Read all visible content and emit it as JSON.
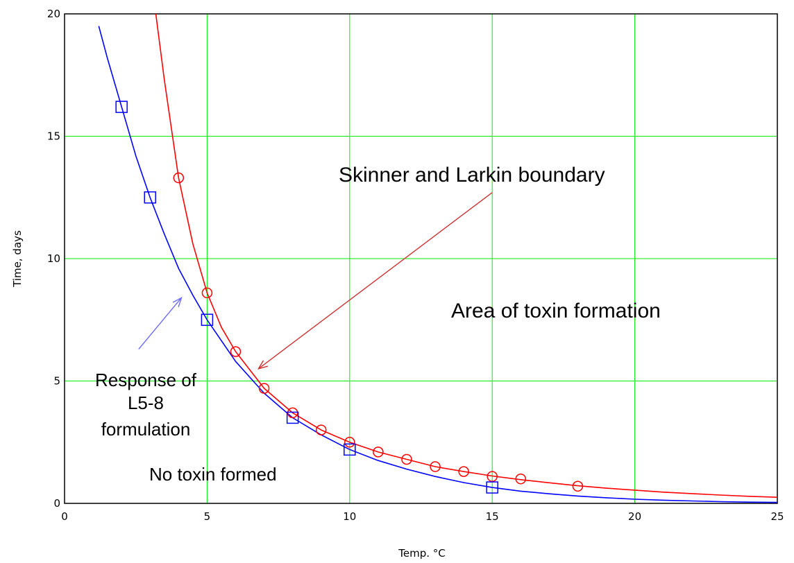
{
  "chart_data": {
    "type": "line",
    "xlabel": "Temp. °C",
    "ylabel": "Time, days",
    "xlim": [
      0,
      25
    ],
    "ylim": [
      0,
      20
    ],
    "x_ticks": [
      0,
      5,
      10,
      15,
      20,
      25
    ],
    "y_ticks": [
      0,
      5,
      10,
      15,
      20
    ],
    "grid": true,
    "series": [
      {
        "color": "#ff0000",
        "marker": "circle",
        "points": [
          {
            "x": 4,
            "y": 13.3
          },
          {
            "x": 5,
            "y": 8.6
          },
          {
            "x": 6,
            "y": 6.2
          },
          {
            "x": 7,
            "y": 4.7
          },
          {
            "x": 8,
            "y": 3.7
          },
          {
            "x": 9,
            "y": 3.0
          },
          {
            "x": 10,
            "y": 2.5
          },
          {
            "x": 11,
            "y": 2.1
          },
          {
            "x": 12,
            "y": 1.8
          },
          {
            "x": 13,
            "y": 1.5
          },
          {
            "x": 14,
            "y": 1.3
          },
          {
            "x": 15,
            "y": 1.1
          },
          {
            "x": 16,
            "y": 1.0
          },
          {
            "x": 18,
            "y": 0.7
          }
        ],
        "curve": [
          {
            "x": 3.2,
            "y": 20
          },
          {
            "x": 3.5,
            "y": 17.3
          },
          {
            "x": 4,
            "y": 13.3
          },
          {
            "x": 4.5,
            "y": 10.6
          },
          {
            "x": 5,
            "y": 8.6
          },
          {
            "x": 5.5,
            "y": 7.2
          },
          {
            "x": 6,
            "y": 6.2
          },
          {
            "x": 7,
            "y": 4.7
          },
          {
            "x": 8,
            "y": 3.7
          },
          {
            "x": 9,
            "y": 3.0
          },
          {
            "x": 10,
            "y": 2.5
          },
          {
            "x": 11,
            "y": 2.1
          },
          {
            "x": 12,
            "y": 1.8
          },
          {
            "x": 13,
            "y": 1.5
          },
          {
            "x": 14,
            "y": 1.3
          },
          {
            "x": 15,
            "y": 1.12
          },
          {
            "x": 16,
            "y": 0.97
          },
          {
            "x": 17,
            "y": 0.84
          },
          {
            "x": 18,
            "y": 0.72
          },
          {
            "x": 19,
            "y": 0.62
          },
          {
            "x": 20,
            "y": 0.54
          },
          {
            "x": 21,
            "y": 0.46
          },
          {
            "x": 22,
            "y": 0.4
          },
          {
            "x": 23,
            "y": 0.34
          },
          {
            "x": 24,
            "y": 0.29
          },
          {
            "x": 25,
            "y": 0.25
          }
        ]
      },
      {
        "color": "#0000ff",
        "marker": "square",
        "points": [
          {
            "x": 2,
            "y": 16.2
          },
          {
            "x": 3,
            "y": 12.5
          },
          {
            "x": 5,
            "y": 7.5
          },
          {
            "x": 8,
            "y": 3.5
          },
          {
            "x": 10,
            "y": 2.2
          },
          {
            "x": 15,
            "y": 0.65
          }
        ],
        "curve": [
          {
            "x": 1.2,
            "y": 19.5
          },
          {
            "x": 1.5,
            "y": 18.2
          },
          {
            "x": 2,
            "y": 16.2
          },
          {
            "x": 2.5,
            "y": 14.2
          },
          {
            "x": 3,
            "y": 12.5
          },
          {
            "x": 3.5,
            "y": 11.0
          },
          {
            "x": 4,
            "y": 9.6
          },
          {
            "x": 4.5,
            "y": 8.5
          },
          {
            "x": 5,
            "y": 7.5
          },
          {
            "x": 6,
            "y": 5.8
          },
          {
            "x": 7,
            "y": 4.5
          },
          {
            "x": 8,
            "y": 3.5
          },
          {
            "x": 9,
            "y": 2.8
          },
          {
            "x": 10,
            "y": 2.2
          },
          {
            "x": 11,
            "y": 1.75
          },
          {
            "x": 12,
            "y": 1.4
          },
          {
            "x": 13,
            "y": 1.1
          },
          {
            "x": 14,
            "y": 0.85
          },
          {
            "x": 15,
            "y": 0.65
          },
          {
            "x": 16,
            "y": 0.5
          },
          {
            "x": 17,
            "y": 0.39
          },
          {
            "x": 18,
            "y": 0.3
          },
          {
            "x": 19,
            "y": 0.23
          },
          {
            "x": 20,
            "y": 0.17
          },
          {
            "x": 21,
            "y": 0.13
          },
          {
            "x": 22,
            "y": 0.1
          },
          {
            "x": 23,
            "y": 0.07
          },
          {
            "x": 24,
            "y": 0.05
          },
          {
            "x": 25,
            "y": 0.04
          }
        ]
      }
    ],
    "annotations": {
      "skinner": "Skinner and Larkin boundary",
      "toxin_area": "Area of toxin formation",
      "response_line1": "Response of",
      "response_line2": "L5-8",
      "response_line3": "formulation",
      "no_toxin": "No toxin formed"
    },
    "arrows": [
      {
        "color": "#cc3333",
        "from": {
          "x": 15.0,
          "y": 12.7
        },
        "to": {
          "x": 6.8,
          "y": 5.5
        }
      },
      {
        "color": "#6a6aff",
        "from": {
          "x": 2.6,
          "y": 6.3
        },
        "to": {
          "x": 4.1,
          "y": 8.4
        }
      }
    ]
  }
}
